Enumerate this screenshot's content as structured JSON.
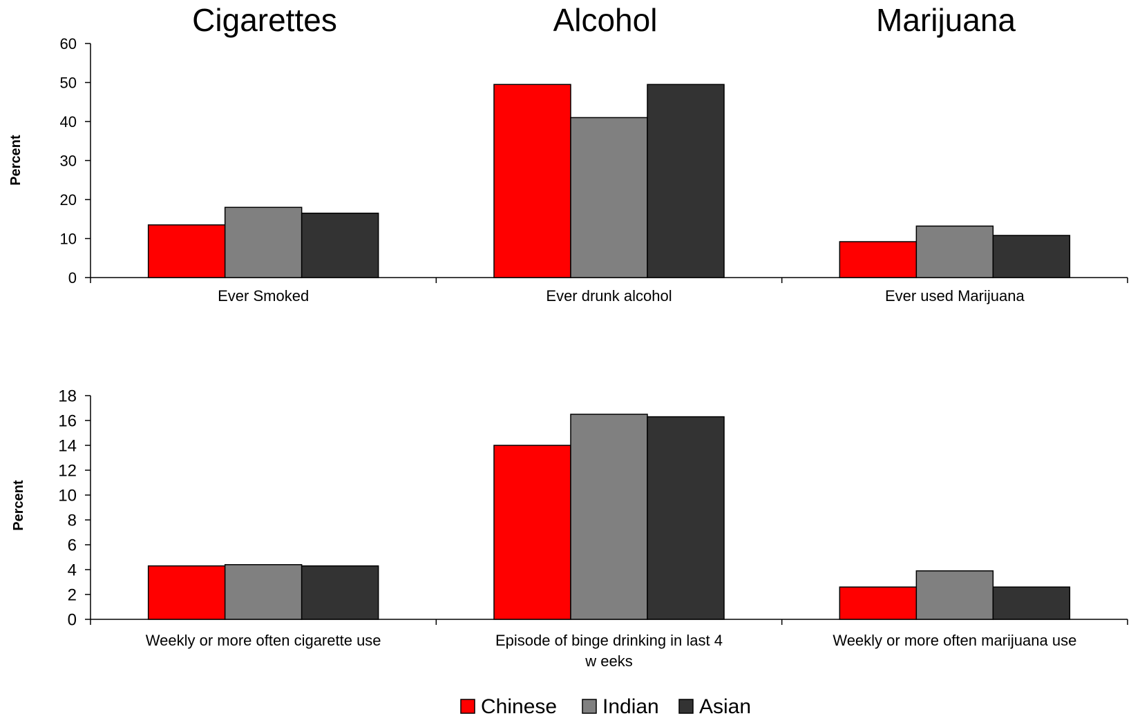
{
  "group_titles": [
    "Cigarettes",
    "Alcohol",
    "Marijuana"
  ],
  "colors": {
    "Chinese": "#ff0000",
    "Indian": "#808080",
    "Asian": "#333333"
  },
  "legend": [
    "Chinese",
    "Indian",
    "Asian"
  ],
  "chart_data": [
    {
      "type": "bar",
      "categories": [
        "Ever Smoked",
        "Ever drunk alcohol",
        "Ever used Marijuana"
      ],
      "series": [
        {
          "name": "Chinese",
          "values": [
            13.5,
            49.5,
            9.2
          ]
        },
        {
          "name": "Indian",
          "values": [
            18.0,
            41.0,
            13.2
          ]
        },
        {
          "name": "Asian",
          "values": [
            16.5,
            49.5,
            10.8
          ]
        }
      ],
      "ylabel": "Percent",
      "ylim": [
        0,
        60
      ],
      "yticks": [
        0,
        10,
        20,
        30,
        40,
        50,
        60
      ],
      "grid": false,
      "legend_position": "bottom"
    },
    {
      "type": "bar",
      "categories": [
        "Weekly or more often cigarette use",
        "Episode of binge drinking in last 4 w eeks",
        "Weekly or more often marijuana use"
      ],
      "series": [
        {
          "name": "Chinese",
          "values": [
            4.3,
            14.0,
            2.6
          ]
        },
        {
          "name": "Indian",
          "values": [
            4.4,
            16.5,
            3.9
          ]
        },
        {
          "name": "Asian",
          "values": [
            4.3,
            16.3,
            2.6
          ]
        }
      ],
      "ylabel": "Percent",
      "ylim": [
        0,
        18
      ],
      "yticks": [
        0,
        2,
        4,
        6,
        8,
        10,
        12,
        14,
        16,
        18
      ],
      "grid": false,
      "legend_position": "bottom"
    }
  ]
}
